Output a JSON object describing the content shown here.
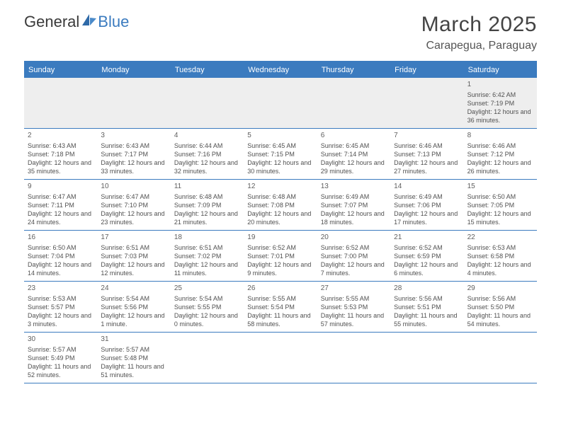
{
  "logo": {
    "general": "General",
    "blue": "Blue"
  },
  "title": "March 2025",
  "location": "Carapegua, Paraguay",
  "weekdays": [
    "Sunday",
    "Monday",
    "Tuesday",
    "Wednesday",
    "Thursday",
    "Friday",
    "Saturday"
  ],
  "colors": {
    "accent": "#3b7bbf",
    "text": "#505050",
    "headerText": "#444444",
    "emptyRowBg": "#eeeeee",
    "background": "#ffffff"
  },
  "layout": {
    "columns": 7,
    "rows": 6,
    "firstDayColumnIndex": 6,
    "cellFontSize": 9,
    "dayNumberFontSize": 10,
    "weekdayFontSize": 11
  },
  "days": [
    {
      "n": "1",
      "sunrise": "Sunrise: 6:42 AM",
      "sunset": "Sunset: 7:19 PM",
      "daylight": "Daylight: 12 hours and 36 minutes."
    },
    {
      "n": "2",
      "sunrise": "Sunrise: 6:43 AM",
      "sunset": "Sunset: 7:18 PM",
      "daylight": "Daylight: 12 hours and 35 minutes."
    },
    {
      "n": "3",
      "sunrise": "Sunrise: 6:43 AM",
      "sunset": "Sunset: 7:17 PM",
      "daylight": "Daylight: 12 hours and 33 minutes."
    },
    {
      "n": "4",
      "sunrise": "Sunrise: 6:44 AM",
      "sunset": "Sunset: 7:16 PM",
      "daylight": "Daylight: 12 hours and 32 minutes."
    },
    {
      "n": "5",
      "sunrise": "Sunrise: 6:45 AM",
      "sunset": "Sunset: 7:15 PM",
      "daylight": "Daylight: 12 hours and 30 minutes."
    },
    {
      "n": "6",
      "sunrise": "Sunrise: 6:45 AM",
      "sunset": "Sunset: 7:14 PM",
      "daylight": "Daylight: 12 hours and 29 minutes."
    },
    {
      "n": "7",
      "sunrise": "Sunrise: 6:46 AM",
      "sunset": "Sunset: 7:13 PM",
      "daylight": "Daylight: 12 hours and 27 minutes."
    },
    {
      "n": "8",
      "sunrise": "Sunrise: 6:46 AM",
      "sunset": "Sunset: 7:12 PM",
      "daylight": "Daylight: 12 hours and 26 minutes."
    },
    {
      "n": "9",
      "sunrise": "Sunrise: 6:47 AM",
      "sunset": "Sunset: 7:11 PM",
      "daylight": "Daylight: 12 hours and 24 minutes."
    },
    {
      "n": "10",
      "sunrise": "Sunrise: 6:47 AM",
      "sunset": "Sunset: 7:10 PM",
      "daylight": "Daylight: 12 hours and 23 minutes."
    },
    {
      "n": "11",
      "sunrise": "Sunrise: 6:48 AM",
      "sunset": "Sunset: 7:09 PM",
      "daylight": "Daylight: 12 hours and 21 minutes."
    },
    {
      "n": "12",
      "sunrise": "Sunrise: 6:48 AM",
      "sunset": "Sunset: 7:08 PM",
      "daylight": "Daylight: 12 hours and 20 minutes."
    },
    {
      "n": "13",
      "sunrise": "Sunrise: 6:49 AM",
      "sunset": "Sunset: 7:07 PM",
      "daylight": "Daylight: 12 hours and 18 minutes."
    },
    {
      "n": "14",
      "sunrise": "Sunrise: 6:49 AM",
      "sunset": "Sunset: 7:06 PM",
      "daylight": "Daylight: 12 hours and 17 minutes."
    },
    {
      "n": "15",
      "sunrise": "Sunrise: 6:50 AM",
      "sunset": "Sunset: 7:05 PM",
      "daylight": "Daylight: 12 hours and 15 minutes."
    },
    {
      "n": "16",
      "sunrise": "Sunrise: 6:50 AM",
      "sunset": "Sunset: 7:04 PM",
      "daylight": "Daylight: 12 hours and 14 minutes."
    },
    {
      "n": "17",
      "sunrise": "Sunrise: 6:51 AM",
      "sunset": "Sunset: 7:03 PM",
      "daylight": "Daylight: 12 hours and 12 minutes."
    },
    {
      "n": "18",
      "sunrise": "Sunrise: 6:51 AM",
      "sunset": "Sunset: 7:02 PM",
      "daylight": "Daylight: 12 hours and 11 minutes."
    },
    {
      "n": "19",
      "sunrise": "Sunrise: 6:52 AM",
      "sunset": "Sunset: 7:01 PM",
      "daylight": "Daylight: 12 hours and 9 minutes."
    },
    {
      "n": "20",
      "sunrise": "Sunrise: 6:52 AM",
      "sunset": "Sunset: 7:00 PM",
      "daylight": "Daylight: 12 hours and 7 minutes."
    },
    {
      "n": "21",
      "sunrise": "Sunrise: 6:52 AM",
      "sunset": "Sunset: 6:59 PM",
      "daylight": "Daylight: 12 hours and 6 minutes."
    },
    {
      "n": "22",
      "sunrise": "Sunrise: 6:53 AM",
      "sunset": "Sunset: 6:58 PM",
      "daylight": "Daylight: 12 hours and 4 minutes."
    },
    {
      "n": "23",
      "sunrise": "Sunrise: 5:53 AM",
      "sunset": "Sunset: 5:57 PM",
      "daylight": "Daylight: 12 hours and 3 minutes."
    },
    {
      "n": "24",
      "sunrise": "Sunrise: 5:54 AM",
      "sunset": "Sunset: 5:56 PM",
      "daylight": "Daylight: 12 hours and 1 minute."
    },
    {
      "n": "25",
      "sunrise": "Sunrise: 5:54 AM",
      "sunset": "Sunset: 5:55 PM",
      "daylight": "Daylight: 12 hours and 0 minutes."
    },
    {
      "n": "26",
      "sunrise": "Sunrise: 5:55 AM",
      "sunset": "Sunset: 5:54 PM",
      "daylight": "Daylight: 11 hours and 58 minutes."
    },
    {
      "n": "27",
      "sunrise": "Sunrise: 5:55 AM",
      "sunset": "Sunset: 5:53 PM",
      "daylight": "Daylight: 11 hours and 57 minutes."
    },
    {
      "n": "28",
      "sunrise": "Sunrise: 5:56 AM",
      "sunset": "Sunset: 5:51 PM",
      "daylight": "Daylight: 11 hours and 55 minutes."
    },
    {
      "n": "29",
      "sunrise": "Sunrise: 5:56 AM",
      "sunset": "Sunset: 5:50 PM",
      "daylight": "Daylight: 11 hours and 54 minutes."
    },
    {
      "n": "30",
      "sunrise": "Sunrise: 5:57 AM",
      "sunset": "Sunset: 5:49 PM",
      "daylight": "Daylight: 11 hours and 52 minutes."
    },
    {
      "n": "31",
      "sunrise": "Sunrise: 5:57 AM",
      "sunset": "Sunset: 5:48 PM",
      "daylight": "Daylight: 11 hours and 51 minutes."
    }
  ]
}
